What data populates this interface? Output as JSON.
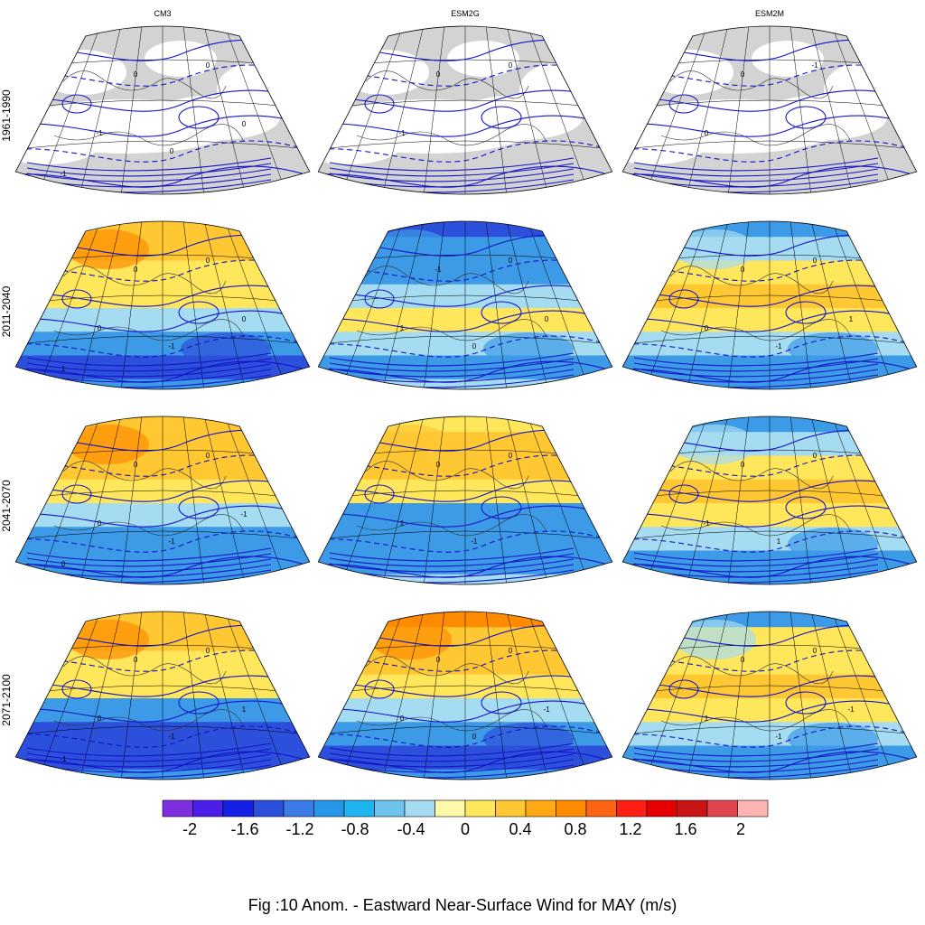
{
  "figure": {
    "columns": [
      "CM3",
      "ESM2G",
      "ESM2M"
    ],
    "rows": [
      "1961-1990",
      "2011-2040",
      "2041-2070",
      "2071-2100"
    ],
    "caption": "Fig :10  Anom.  - Eastward Near-Surface Wind for MAY (m/s)"
  },
  "colorbar": {
    "colors": [
      "#7e2fe0",
      "#4a1ee6",
      "#1420e6",
      "#2d50dc",
      "#3c7ce6",
      "#2896e8",
      "#1eb4f0",
      "#6ec3ec",
      "#a6dcf2",
      "#fffaaa",
      "#ffe65a",
      "#ffc832",
      "#ffaa14",
      "#ff8c00",
      "#ff6414",
      "#ff1e14",
      "#e60000",
      "#c81414",
      "#e14650",
      "#ffb4b4"
    ],
    "ticks": [
      "-2",
      "-1.6",
      "-1.2",
      "-0.8",
      "-0.4",
      "0",
      "0.4",
      "0.8",
      "1.2",
      "1.6",
      "2"
    ]
  },
  "panels": [
    {
      "row": 0,
      "col": 0,
      "kind": "baseline",
      "labels": [
        "0",
        "0",
        "-1",
        "0",
        "0",
        "-1"
      ]
    },
    {
      "row": 0,
      "col": 1,
      "kind": "baseline",
      "labels": [
        "0",
        "0",
        "-1"
      ]
    },
    {
      "row": 0,
      "col": 2,
      "kind": "baseline",
      "labels": [
        "0",
        "-1",
        "0"
      ]
    },
    {
      "row": 1,
      "col": 0,
      "kind": "anom",
      "pattern": [
        2,
        2,
        1,
        1,
        0,
        -1,
        -2,
        -1
      ],
      "labels": [
        "0",
        "0",
        "0",
        "-1",
        "0",
        "1"
      ]
    },
    {
      "row": 1,
      "col": 1,
      "kind": "anom",
      "pattern": [
        -2,
        -1,
        -1,
        0,
        1,
        0,
        -1,
        0
      ],
      "labels": [
        "-1",
        "0",
        "1",
        "0",
        "0"
      ]
    },
    {
      "row": 1,
      "col": 2,
      "kind": "anom",
      "pattern": [
        -1,
        0,
        1,
        2,
        1,
        0,
        -1,
        -1
      ],
      "labels": [
        "0",
        "0",
        "0",
        "-1",
        "1"
      ]
    },
    {
      "row": 2,
      "col": 0,
      "kind": "anom",
      "pattern": [
        2,
        2,
        2,
        1,
        0,
        -1,
        -1,
        -1
      ],
      "labels": [
        "0",
        "0",
        "0",
        "-1",
        "-1",
        "0"
      ]
    },
    {
      "row": 2,
      "col": 1,
      "kind": "anom",
      "pattern": [
        1,
        2,
        2,
        1,
        -1,
        -1,
        -1,
        0
      ],
      "labels": [
        "0",
        "0",
        "1",
        "-1"
      ]
    },
    {
      "row": 2,
      "col": 2,
      "kind": "anom",
      "pattern": [
        -1,
        0,
        1,
        2,
        1,
        0,
        -1,
        -1
      ],
      "labels": [
        "0",
        "0",
        "-1",
        "1"
      ]
    },
    {
      "row": 3,
      "col": 0,
      "kind": "anom",
      "pattern": [
        2,
        2,
        1,
        1,
        -1,
        -2,
        -2,
        -1
      ],
      "labels": [
        "0",
        "0",
        "0",
        "-1",
        "1",
        "-1"
      ]
    },
    {
      "row": 3,
      "col": 1,
      "kind": "anom",
      "pattern": [
        3,
        2,
        2,
        1,
        0,
        -1,
        -2,
        -1
      ],
      "labels": [
        "0",
        "0",
        "0",
        "0",
        "-1"
      ]
    },
    {
      "row": 3,
      "col": 2,
      "kind": "anom",
      "pattern": [
        -1,
        1,
        1,
        2,
        1,
        0,
        -1,
        -1
      ],
      "labels": [
        "0",
        "0",
        "1",
        "-1",
        "-1"
      ]
    }
  ]
}
